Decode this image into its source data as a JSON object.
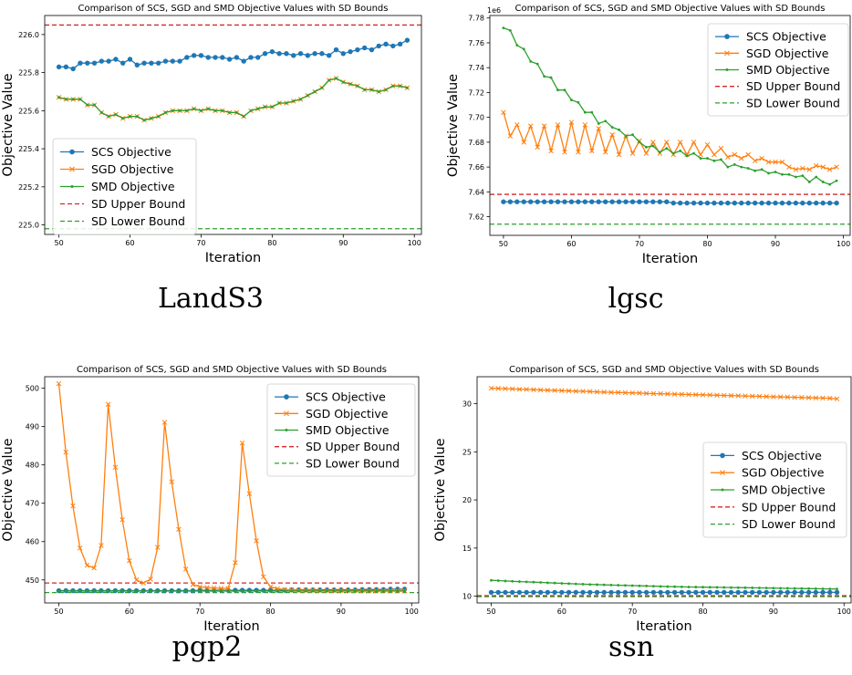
{
  "colors": {
    "scs": "#1f77b4",
    "sgd": "#ff7f0e",
    "smd": "#2ca02c",
    "upper": "#d62728",
    "lower": "#2ca02c",
    "frame": "#000000"
  },
  "chart_data": [
    {
      "type": "line",
      "caption": "LandS3",
      "title": "Comparison of SCS, SGD and SMD Objective Values with SD Bounds",
      "xlabel": "Iteration",
      "ylabel": "Objective Value",
      "offset_label": "",
      "xlim": [
        48,
        101
      ],
      "ylim": [
        224.95,
        226.1
      ],
      "xticks": [
        50,
        60,
        70,
        80,
        90,
        100
      ],
      "yticks": [
        225.0,
        225.2,
        225.4,
        225.6,
        225.8,
        226.0
      ],
      "ytick_labels": [
        "225.0",
        "225.2",
        "225.4",
        "225.6",
        "225.8",
        "226.0"
      ],
      "legend_position": "lower-left",
      "legend": [
        "SCS Objective",
        "SGD Objective",
        "SMD Objective",
        "SD Upper Bound",
        "SD Lower Bound"
      ],
      "upper_bound": 226.05,
      "lower_bound": 224.98,
      "x": [
        50,
        51,
        52,
        53,
        54,
        55,
        56,
        57,
        58,
        59,
        60,
        61,
        62,
        63,
        64,
        65,
        66,
        67,
        68,
        69,
        70,
        71,
        72,
        73,
        74,
        75,
        76,
        77,
        78,
        79,
        80,
        81,
        82,
        83,
        84,
        85,
        86,
        87,
        88,
        89,
        90,
        91,
        92,
        93,
        94,
        95,
        96,
        97,
        98,
        99
      ],
      "series": [
        {
          "name": "SCS Objective",
          "marker": "dot",
          "values": [
            225.83,
            225.83,
            225.82,
            225.85,
            225.85,
            225.85,
            225.86,
            225.86,
            225.87,
            225.85,
            225.87,
            225.84,
            225.85,
            225.85,
            225.85,
            225.86,
            225.86,
            225.86,
            225.88,
            225.89,
            225.89,
            225.88,
            225.88,
            225.88,
            225.87,
            225.88,
            225.86,
            225.88,
            225.88,
            225.9,
            225.91,
            225.9,
            225.9,
            225.89,
            225.9,
            225.89,
            225.9,
            225.9,
            225.89,
            225.92,
            225.9,
            225.91,
            225.92,
            225.93,
            225.92,
            225.94,
            225.95,
            225.94,
            225.95,
            225.97
          ]
        },
        {
          "name": "SGD Objective",
          "marker": "x",
          "values": [
            225.67,
            225.66,
            225.66,
            225.66,
            225.63,
            225.63,
            225.59,
            225.57,
            225.58,
            225.56,
            225.57,
            225.57,
            225.55,
            225.56,
            225.57,
            225.59,
            225.6,
            225.6,
            225.6,
            225.61,
            225.6,
            225.61,
            225.6,
            225.6,
            225.59,
            225.59,
            225.57,
            225.6,
            225.61,
            225.62,
            225.62,
            225.64,
            225.64,
            225.65,
            225.66,
            225.68,
            225.7,
            225.72,
            225.76,
            225.77,
            225.75,
            225.74,
            225.73,
            225.71,
            225.71,
            225.7,
            225.71,
            225.73,
            225.73,
            225.72
          ]
        },
        {
          "name": "SMD Objective",
          "marker": "dot-small",
          "values": [
            225.67,
            225.66,
            225.66,
            225.66,
            225.63,
            225.63,
            225.59,
            225.57,
            225.58,
            225.56,
            225.57,
            225.57,
            225.55,
            225.56,
            225.57,
            225.59,
            225.6,
            225.6,
            225.6,
            225.61,
            225.6,
            225.61,
            225.6,
            225.6,
            225.59,
            225.59,
            225.57,
            225.6,
            225.61,
            225.62,
            225.62,
            225.64,
            225.64,
            225.65,
            225.66,
            225.68,
            225.7,
            225.72,
            225.76,
            225.77,
            225.75,
            225.74,
            225.73,
            225.71,
            225.71,
            225.7,
            225.71,
            225.73,
            225.73,
            225.72
          ]
        }
      ]
    },
    {
      "type": "line",
      "caption": "lgsc",
      "title": "Comparison of SCS, SGD and SMD Objective Values with SD Bounds",
      "xlabel": "Iteration",
      "ylabel": "Objective Value",
      "offset_label": "1e6",
      "xlim": [
        48,
        101
      ],
      "ylim": [
        7.605,
        7.782
      ],
      "xticks": [
        50,
        60,
        70,
        80,
        90,
        100
      ],
      "yticks": [
        7.62,
        7.64,
        7.66,
        7.68,
        7.7,
        7.72,
        7.74,
        7.76,
        7.78
      ],
      "ytick_labels": [
        "7.62",
        "7.64",
        "7.66",
        "7.68",
        "7.70",
        "7.72",
        "7.74",
        "7.76",
        "7.78"
      ],
      "legend_position": "top-right",
      "legend": [
        "SCS Objective",
        "SGD Objective",
        "SMD Objective",
        "SD Upper Bound",
        "SD Lower Bound"
      ],
      "upper_bound": 7.638,
      "lower_bound": 7.614,
      "x": [
        50,
        51,
        52,
        53,
        54,
        55,
        56,
        57,
        58,
        59,
        60,
        61,
        62,
        63,
        64,
        65,
        66,
        67,
        68,
        69,
        70,
        71,
        72,
        73,
        74,
        75,
        76,
        77,
        78,
        79,
        80,
        81,
        82,
        83,
        84,
        85,
        86,
        87,
        88,
        89,
        90,
        91,
        92,
        93,
        94,
        95,
        96,
        97,
        98,
        99
      ],
      "series": [
        {
          "name": "SCS Objective",
          "marker": "dot",
          "values": [
            7.632,
            7.632,
            7.632,
            7.632,
            7.632,
            7.632,
            7.632,
            7.632,
            7.632,
            7.632,
            7.632,
            7.632,
            7.632,
            7.632,
            7.632,
            7.632,
            7.632,
            7.632,
            7.632,
            7.632,
            7.632,
            7.632,
            7.632,
            7.632,
            7.632,
            7.631,
            7.631,
            7.631,
            7.631,
            7.631,
            7.631,
            7.631,
            7.631,
            7.631,
            7.631,
            7.631,
            7.631,
            7.631,
            7.631,
            7.631,
            7.631,
            7.631,
            7.631,
            7.631,
            7.631,
            7.631,
            7.631,
            7.631,
            7.631,
            7.631
          ]
        },
        {
          "name": "SGD Objective",
          "marker": "x",
          "values": [
            7.704,
            7.685,
            7.694,
            7.68,
            7.693,
            7.676,
            7.693,
            7.673,
            7.694,
            7.672,
            7.696,
            7.672,
            7.694,
            7.673,
            7.691,
            7.672,
            7.686,
            7.67,
            7.685,
            7.671,
            7.681,
            7.671,
            7.68,
            7.671,
            7.68,
            7.67,
            7.68,
            7.67,
            7.68,
            7.67,
            7.678,
            7.67,
            7.675,
            7.668,
            7.67,
            7.667,
            7.67,
            7.665,
            7.667,
            7.664,
            7.664,
            7.664,
            7.66,
            7.658,
            7.659,
            7.658,
            7.661,
            7.66,
            7.658,
            7.66
          ]
        },
        {
          "name": "SMD Objective",
          "marker": "dot-small",
          "values": [
            7.772,
            7.77,
            7.758,
            7.755,
            7.745,
            7.743,
            7.733,
            7.732,
            7.722,
            7.722,
            7.714,
            7.712,
            7.704,
            7.704,
            7.695,
            7.697,
            7.692,
            7.69,
            7.685,
            7.686,
            7.68,
            7.676,
            7.677,
            7.672,
            7.675,
            7.671,
            7.673,
            7.669,
            7.671,
            7.667,
            7.667,
            7.665,
            7.666,
            7.66,
            7.662,
            7.66,
            7.659,
            7.657,
            7.658,
            7.655,
            7.656,
            7.654,
            7.654,
            7.652,
            7.653,
            7.648,
            7.652,
            7.648,
            7.646,
            7.649
          ]
        }
      ]
    },
    {
      "type": "line",
      "caption": "pgp2",
      "title": "Comparison of SCS, SGD and SMD Objective Values with SD Bounds",
      "xlabel": "Iteration",
      "ylabel": "Objective Value",
      "offset_label": "",
      "xlim": [
        48,
        101
      ],
      "ylim": [
        444,
        503
      ],
      "xticks": [
        50,
        60,
        70,
        80,
        90,
        100
      ],
      "yticks": [
        450,
        460,
        470,
        480,
        490,
        500
      ],
      "ytick_labels": [
        "450",
        "460",
        "470",
        "480",
        "490",
        "500"
      ],
      "legend_position": "top-right",
      "legend": [
        "SCS Objective",
        "SGD Objective",
        "SMD Objective",
        "SD Upper Bound",
        "SD Lower Bound"
      ],
      "upper_bound": 449.2,
      "lower_bound": 446.7,
      "x": [
        50,
        51,
        52,
        53,
        54,
        55,
        56,
        57,
        58,
        59,
        60,
        61,
        62,
        63,
        64,
        65,
        66,
        67,
        68,
        69,
        70,
        71,
        72,
        73,
        74,
        75,
        76,
        77,
        78,
        79,
        80,
        81,
        82,
        83,
        84,
        85,
        86,
        87,
        88,
        89,
        90,
        91,
        92,
        93,
        94,
        95,
        96,
        97,
        98,
        99
      ],
      "series": [
        {
          "name": "SCS Objective",
          "marker": "dot",
          "values": [
            447.2,
            447.2,
            447.2,
            447.2,
            447.2,
            447.2,
            447.2,
            447.2,
            447.2,
            447.2,
            447.2,
            447.2,
            447.2,
            447.2,
            447.2,
            447.2,
            447.2,
            447.2,
            447.2,
            447.2,
            447.3,
            447.3,
            447.3,
            447.3,
            447.3,
            447.3,
            447.3,
            447.3,
            447.3,
            447.3,
            447.3,
            447.3,
            447.3,
            447.4,
            447.4,
            447.4,
            447.4,
            447.4,
            447.4,
            447.4,
            447.4,
            447.4,
            447.4,
            447.5,
            447.5,
            447.5,
            447.5,
            447.6,
            447.6,
            447.6
          ]
        },
        {
          "name": "SGD Objective",
          "marker": "x",
          "values": [
            501.2,
            483.3,
            469.3,
            458.3,
            453.8,
            453.1,
            459.0,
            495.8,
            479.4,
            465.7,
            455.0,
            450.0,
            449.2,
            450.2,
            458.5,
            491.1,
            475.6,
            463.2,
            452.8,
            448.8,
            448.2,
            448.0,
            447.9,
            447.8,
            447.8,
            454.5,
            485.7,
            472.5,
            460.2,
            450.8,
            448.2,
            447.7,
            447.5,
            447.4,
            447.3,
            447.3,
            447.3,
            447.2,
            447.2,
            447.2,
            447.2,
            447.2,
            447.2,
            447.2,
            447.2,
            447.2,
            447.2,
            447.2,
            447.2,
            447.2
          ]
        },
        {
          "name": "SMD Objective",
          "marker": "dot-small",
          "values": [
            447.1,
            447.1,
            447.1,
            447.1,
            447.1,
            447.1,
            447.1,
            447.1,
            447.1,
            447.1,
            447.1,
            447.1,
            447.1,
            447.1,
            447.1,
            447.1,
            447.1,
            447.1,
            447.1,
            447.1,
            447.1,
            447.1,
            447.1,
            447.1,
            447.1,
            447.1,
            447.1,
            447.1,
            447.1,
            447.1,
            447.1,
            447.1,
            447.1,
            447.1,
            447.1,
            447.1,
            447.1,
            447.1,
            447.1,
            447.1,
            447.1,
            447.1,
            447.1,
            447.1,
            447.1,
            447.1,
            447.1,
            447.1,
            447.1,
            447.1
          ]
        }
      ]
    },
    {
      "type": "line",
      "caption": "ssn",
      "title": "Comparison of SCS, SGD and SMD Objective Values with SD Bounds",
      "xlabel": "Iteration",
      "ylabel": "Objective Value",
      "offset_label": "",
      "xlim": [
        48,
        101
      ],
      "ylim": [
        9.3,
        32.8
      ],
      "xticks": [
        50,
        60,
        70,
        80,
        90,
        100
      ],
      "yticks": [
        10,
        15,
        20,
        25,
        30
      ],
      "ytick_labels": [
        "10",
        "15",
        "20",
        "25",
        "30"
      ],
      "legend_position": "center-right",
      "legend": [
        "SCS Objective",
        "SGD Objective",
        "SMD Objective",
        "SD Upper Bound",
        "SD Lower Bound"
      ],
      "upper_bound": 10.05,
      "lower_bound": 9.95,
      "x": [
        50,
        51,
        52,
        53,
        54,
        55,
        56,
        57,
        58,
        59,
        60,
        61,
        62,
        63,
        64,
        65,
        66,
        67,
        68,
        69,
        70,
        71,
        72,
        73,
        74,
        75,
        76,
        77,
        78,
        79,
        80,
        81,
        82,
        83,
        84,
        85,
        86,
        87,
        88,
        89,
        90,
        91,
        92,
        93,
        94,
        95,
        96,
        97,
        98,
        99
      ],
      "series": [
        {
          "name": "SCS Objective",
          "marker": "dot",
          "values": [
            10.4,
            10.4,
            10.4,
            10.4,
            10.4,
            10.4,
            10.4,
            10.4,
            10.4,
            10.4,
            10.4,
            10.4,
            10.4,
            10.4,
            10.4,
            10.4,
            10.4,
            10.4,
            10.4,
            10.4,
            10.4,
            10.4,
            10.4,
            10.4,
            10.4,
            10.4,
            10.4,
            10.4,
            10.4,
            10.4,
            10.4,
            10.4,
            10.4,
            10.4,
            10.4,
            10.4,
            10.4,
            10.4,
            10.4,
            10.4,
            10.4,
            10.4,
            10.4,
            10.4,
            10.4,
            10.4,
            10.4,
            10.4,
            10.4,
            10.4
          ]
        },
        {
          "name": "SGD Objective",
          "marker": "x",
          "values": [
            31.6,
            31.58,
            31.56,
            31.53,
            31.5,
            31.48,
            31.45,
            31.43,
            31.4,
            31.38,
            31.35,
            31.33,
            31.3,
            31.28,
            31.26,
            31.23,
            31.2,
            31.18,
            31.16,
            31.14,
            31.12,
            31.1,
            31.07,
            31.05,
            31.03,
            31.01,
            30.99,
            30.97,
            30.95,
            30.93,
            30.92,
            30.9,
            30.88,
            30.86,
            30.84,
            30.82,
            30.8,
            30.78,
            30.76,
            30.74,
            30.72,
            30.7,
            30.68,
            30.66,
            30.64,
            30.62,
            30.6,
            30.58,
            30.56,
            30.5
          ]
        },
        {
          "name": "SMD Objective",
          "marker": "dot-small",
          "values": [
            11.65,
            11.62,
            11.58,
            11.55,
            11.52,
            11.49,
            11.46,
            11.43,
            11.4,
            11.37,
            11.34,
            11.31,
            11.28,
            11.25,
            11.22,
            11.2,
            11.18,
            11.16,
            11.14,
            11.12,
            11.1,
            11.08,
            11.06,
            11.04,
            11.02,
            11.0,
            10.99,
            10.97,
            10.96,
            10.95,
            10.94,
            10.93,
            10.92,
            10.91,
            10.9,
            10.89,
            10.88,
            10.87,
            10.86,
            10.85,
            10.84,
            10.83,
            10.82,
            10.81,
            10.8,
            10.79,
            10.78,
            10.77,
            10.76,
            10.75
          ]
        }
      ]
    }
  ]
}
